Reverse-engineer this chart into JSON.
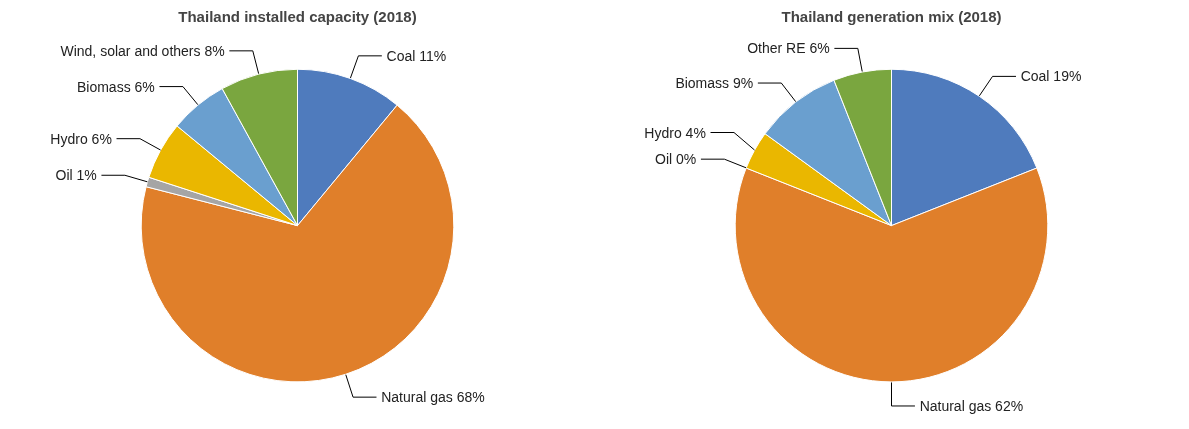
{
  "chart_data": [
    {
      "type": "pie",
      "title": "Thailand installed capacity (2018)",
      "categories": [
        "Coal",
        "Natural gas",
        "Oil",
        "Hydro",
        "Biomass",
        "Wind, solar and others"
      ],
      "values": [
        11,
        68,
        1,
        6,
        6,
        8
      ],
      "value_labels": [
        "11%",
        "68%",
        "1%",
        "6%",
        "6%",
        "8%"
      ],
      "colors": [
        "#4f7bbd",
        "#e07f2a",
        "#a5a5a5",
        "#eab700",
        "#6a9fcf",
        "#7aa63f"
      ]
    },
    {
      "type": "pie",
      "title": "Thailand generation mix (2018)",
      "categories": [
        "Coal",
        "Natural gas",
        "Oil",
        "Hydro",
        "Biomass",
        "Other RE"
      ],
      "values": [
        19,
        62,
        0,
        4,
        9,
        6
      ],
      "value_labels": [
        "19%",
        "62%",
        "0%",
        "4%",
        "9%",
        "6%"
      ],
      "colors": [
        "#4f7bbd",
        "#e07f2a",
        "#a5a5a5",
        "#eab700",
        "#6a9fcf",
        "#7aa63f"
      ]
    }
  ]
}
